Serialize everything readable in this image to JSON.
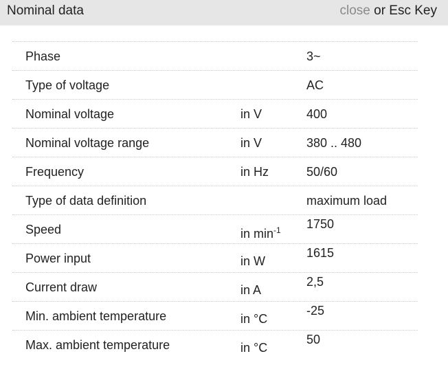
{
  "header": {
    "title": "Nominal data",
    "close": "close",
    "hint": "or Esc Key"
  },
  "table": {
    "rows": [
      {
        "label": "Phase",
        "unit": null,
        "value": "3~"
      },
      {
        "label": "Type of voltage",
        "unit": null,
        "value": "AC"
      },
      {
        "label": "Nominal voltage",
        "unit": "in V",
        "value": "400"
      },
      {
        "label": "Nominal voltage range",
        "unit": "in V",
        "value": "380 .. 480"
      },
      {
        "label": "Frequency",
        "unit": "in Hz",
        "value": "50/60"
      },
      {
        "label": "Type of data definition",
        "unit": null,
        "value": "maximum load"
      },
      {
        "label": "Speed",
        "unit": "in min",
        "unit_sup": "-1",
        "value": "1750"
      },
      {
        "label": "Power input",
        "unit": "in W",
        "value": "1615"
      },
      {
        "label": "Current draw",
        "unit": "in A",
        "value": "2,5"
      },
      {
        "label": "Min. ambient temperature",
        "unit": "in °C",
        "value": "-25"
      },
      {
        "label": "Max. ambient temperature",
        "unit": "in °C",
        "value": "50"
      }
    ]
  }
}
